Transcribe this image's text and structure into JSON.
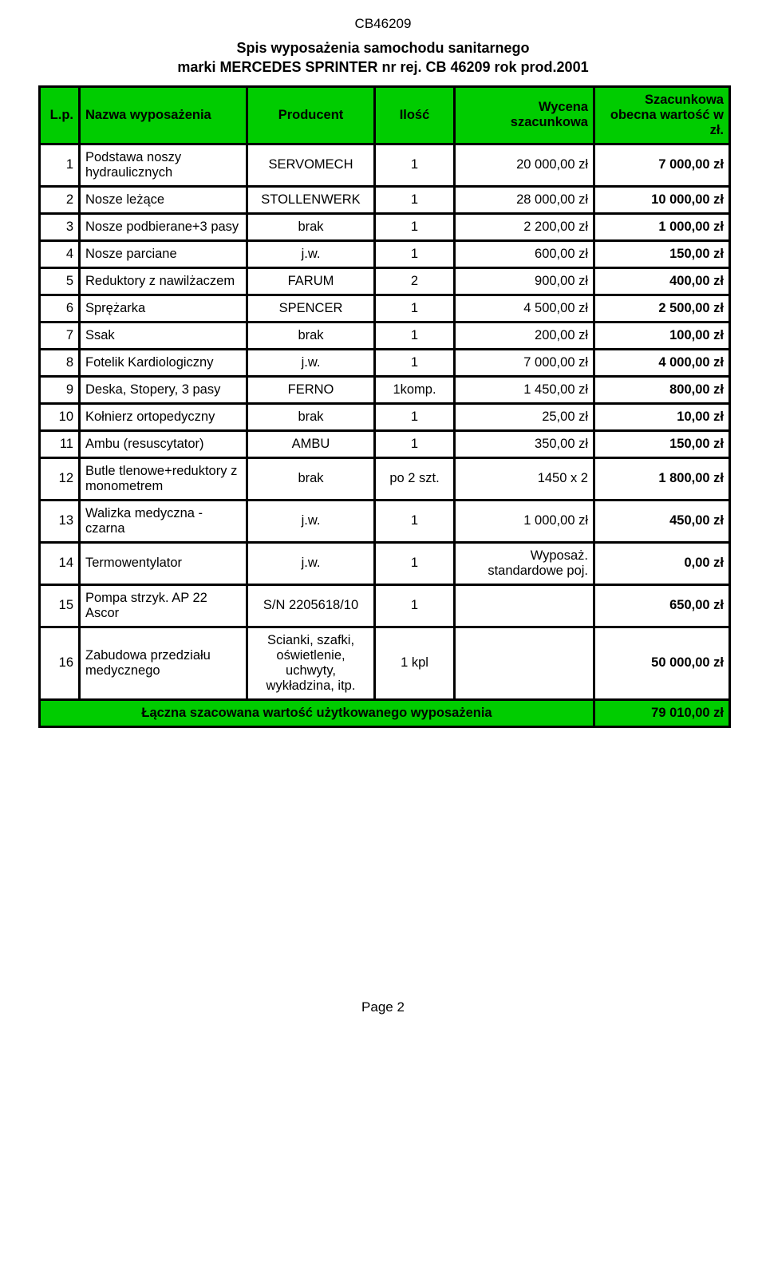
{
  "doc_id": "CB46209",
  "title_line1": "Spis  wyposażenia samochodu sanitarnego",
  "title_line2": "marki  MERCEDES SPRINTER  nr rej.  CB 46209 rok prod.2001",
  "footer": "Page 2",
  "colors": {
    "header_bg": "#00cc00",
    "border": "#000000",
    "text": "#000000",
    "page_bg": "#ffffff"
  },
  "columns": {
    "lp": "L.p.",
    "name": "Nazwa wyposażenia",
    "producer": "Producent",
    "qty": "Ilość",
    "valuation": "Wycena szacunkowa",
    "estimate": "Szacunkowa obecna wartość w zł."
  },
  "rows": [
    {
      "lp": "1",
      "name": "Podstawa noszy hydraulicznych",
      "producer": "SERVOMECH",
      "qty": "1",
      "valuation": "20 000,00 zł",
      "estimate": "7 000,00 zł"
    },
    {
      "lp": "2",
      "name": "Nosze leżące",
      "producer": "STOLLENWERK",
      "qty": "1",
      "valuation": "28 000,00 zł",
      "estimate": "10 000,00 zł"
    },
    {
      "lp": "3",
      "name": "Nosze podbierane+3 pasy",
      "producer": "brak",
      "qty": "1",
      "valuation": "2 200,00 zł",
      "estimate": "1 000,00 zł"
    },
    {
      "lp": "4",
      "name": "Nosze parciane",
      "producer": "j.w.",
      "qty": "1",
      "valuation": "600,00 zł",
      "estimate": "150,00 zł"
    },
    {
      "lp": "5",
      "name": "Reduktory z nawilżaczem",
      "producer": "FARUM",
      "qty": "2",
      "valuation": "900,00 zł",
      "estimate": "400,00 zł"
    },
    {
      "lp": "6",
      "name": "Sprężarka",
      "producer": "SPENCER",
      "qty": "1",
      "valuation": "4 500,00 zł",
      "estimate": "2 500,00 zł"
    },
    {
      "lp": "7",
      "name": "Ssak",
      "producer": "brak",
      "qty": "1",
      "valuation": "200,00 zł",
      "estimate": "100,00 zł"
    },
    {
      "lp": "8",
      "name": "Fotelik Kardiologiczny",
      "producer": "j.w.",
      "qty": "1",
      "valuation": "7 000,00 zł",
      "estimate": "4 000,00 zł"
    },
    {
      "lp": "9",
      "name": "Deska, Stopery, 3 pasy",
      "producer": "FERNO",
      "qty": "1komp.",
      "valuation": "1 450,00 zł",
      "estimate": "800,00 zł"
    },
    {
      "lp": "10",
      "name": "Kołnierz ortopedyczny",
      "producer": "brak",
      "qty": "1",
      "valuation": "25,00 zł",
      "estimate": "10,00 zł"
    },
    {
      "lp": "11",
      "name": "Ambu (resuscytator)",
      "producer": "AMBU",
      "qty": "1",
      "valuation": "350,00 zł",
      "estimate": "150,00 zł"
    },
    {
      "lp": "12",
      "name": "Butle tlenowe+reduktory z monometrem",
      "producer": "brak",
      "qty": "po 2 szt.",
      "valuation": "1450 x 2",
      "estimate": "1 800,00 zł"
    },
    {
      "lp": "13",
      "name": "Walizka medyczna -czarna",
      "producer": "j.w.",
      "qty": "1",
      "valuation": "1 000,00 zł",
      "estimate": "450,00 zł"
    },
    {
      "lp": "14",
      "name": "Termowentylator",
      "producer": "j.w.",
      "qty": "1",
      "valuation": "Wyposaż. standardowe poj.",
      "estimate": "0,00 zł"
    },
    {
      "lp": "15",
      "name": "Pompa strzyk. AP 22 Ascor",
      "producer": "S/N 2205618/10",
      "qty": "1",
      "valuation": "",
      "estimate": "650,00 zł"
    },
    {
      "lp": "16",
      "name": "Zabudowa przedziału medycznego",
      "producer": "Scianki, szafki, oświetlenie, uchwyty, wykładzina, itp.",
      "qty": "1 kpl",
      "valuation": "",
      "estimate": "50 000,00 zł"
    }
  ],
  "total": {
    "label": "Łączna szacowana wartość użytkowanego wyposażenia",
    "value": "79 010,00 zł"
  }
}
